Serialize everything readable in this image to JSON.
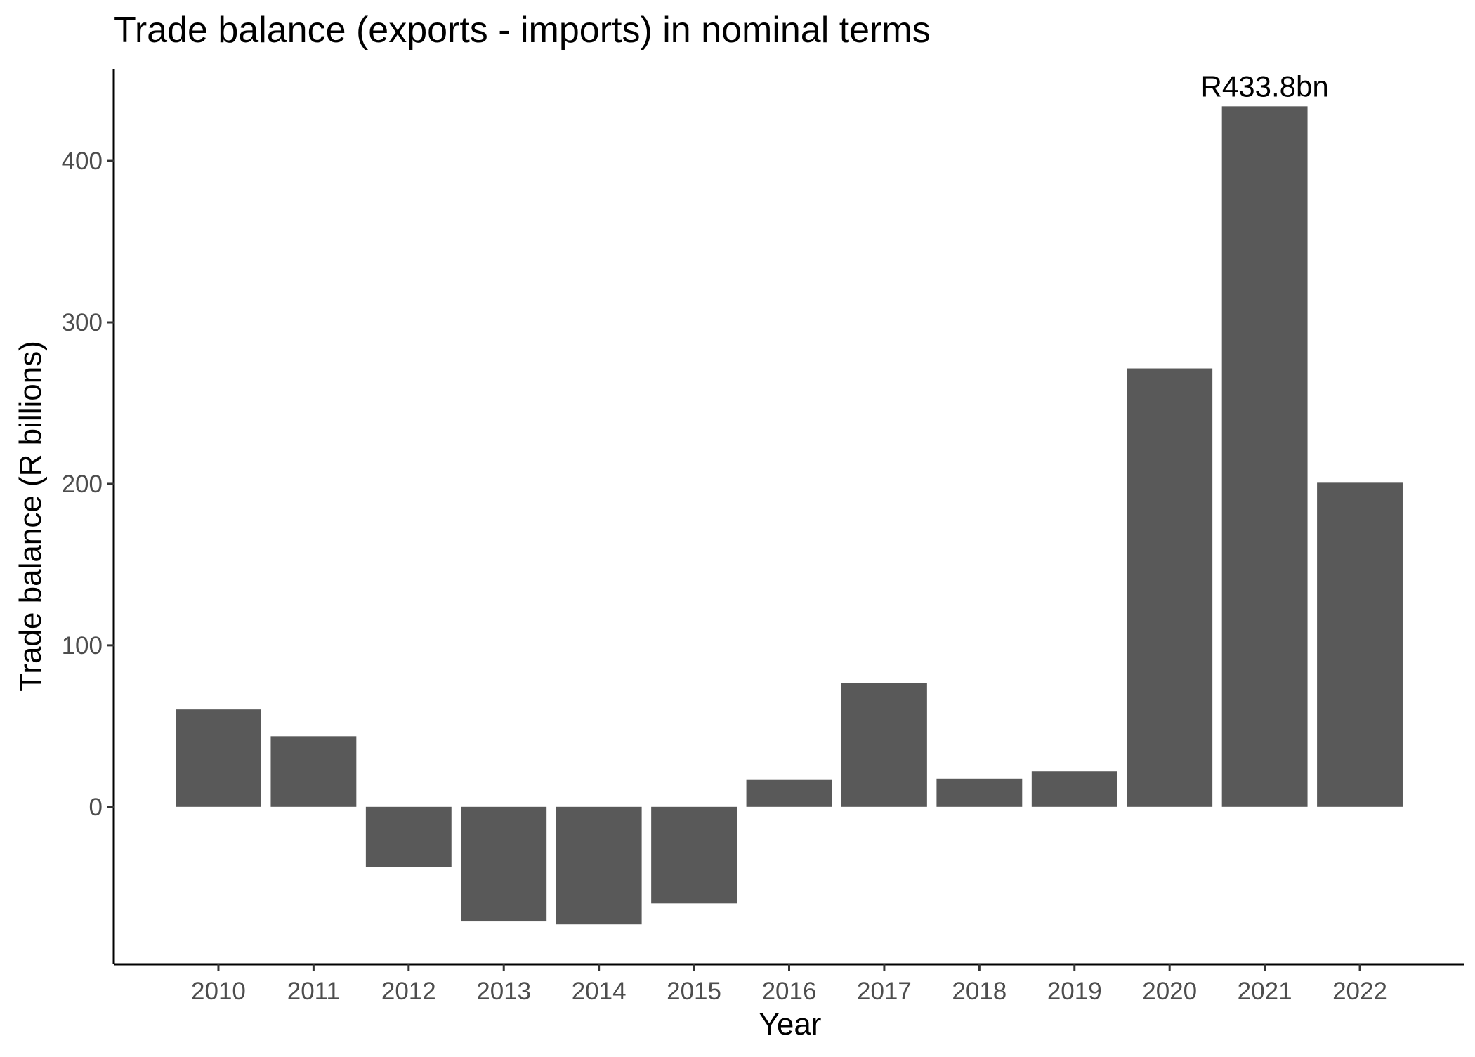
{
  "chart_data": {
    "type": "bar",
    "title": "Trade balance (exports - imports) in nominal terms",
    "xlabel": "Year",
    "ylabel": "Trade balance (R billions)",
    "categories": [
      "2010",
      "2011",
      "2012",
      "2013",
      "2014",
      "2015",
      "2016",
      "2017",
      "2018",
      "2019",
      "2020",
      "2021",
      "2022"
    ],
    "values": [
      60.3,
      43.7,
      -37.2,
      -71.0,
      -72.8,
      -59.8,
      17.0,
      76.7,
      17.4,
      22.0,
      271.5,
      433.8,
      200.7
    ],
    "ylim": [
      -97.5,
      457
    ],
    "yticks": [
      0,
      100,
      200,
      300,
      400
    ],
    "grid": false,
    "legend": "none",
    "bar_color": "#595959",
    "annotations": [
      {
        "category": "2021",
        "text": "R433.8bn"
      }
    ]
  }
}
